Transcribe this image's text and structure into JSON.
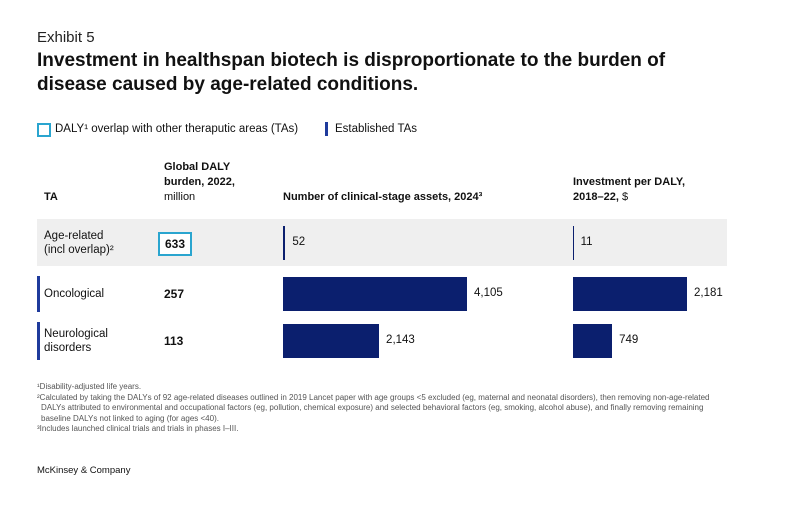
{
  "exhibit": "Exhibit 5",
  "title": "Investment in healthspan biotech is disproportionate to the burden of disease caused by age-related conditions.",
  "legend": [
    {
      "label": "DALY¹ overlap with other theraputic areas (TAs)",
      "color": "#2aa5cf"
    },
    {
      "label": "Established TAs",
      "color": "#1f3b9c"
    }
  ],
  "columns": {
    "ta": "TA",
    "daly": "Global DALY burden, 2022,",
    "daly_unit": "million",
    "assets": "Number of clinical-stage assets, 2024³",
    "investment": "Investment per DALY, 2018–22,",
    "investment_unit": "$"
  },
  "rows": {
    "ta": [
      "Age-related (incl overlap)²",
      "Oncological",
      "Neurological disorders"
    ],
    "daly": [
      633,
      257,
      113
    ]
  },
  "chart_data": [
    {
      "type": "bar",
      "orientation": "horizontal",
      "values": [
        52,
        4105,
        2143
      ],
      "value_labels": [
        "52",
        "4,105",
        "2,143"
      ],
      "color": "#0b1f6e"
    },
    {
      "type": "bar",
      "orientation": "horizontal",
      "values": [
        11,
        2181,
        749
      ],
      "value_labels": [
        "11",
        "2,181",
        "749"
      ],
      "color": "#0b1f6e"
    }
  ],
  "footnotes": [
    "¹Disability-adjusted life years.",
    "²Calculated by taking the DALYs of 92 age-related diseases outlined in 2019 Lancet paper with age groups <5 excluded (eg, maternal and neonatal disorders), then removing non-age-related DALYs attributed to environmental and occupational factors (eg, pollution, chemical exposure) and selected behavioral factors (eg, smoking, alcohol abuse), and finally removing remaining baseline DALYs not linked to aging (for ages <40).",
    "³Includes launched clinical trials and trials in phases I–III."
  ],
  "source": "McKinsey & Company"
}
